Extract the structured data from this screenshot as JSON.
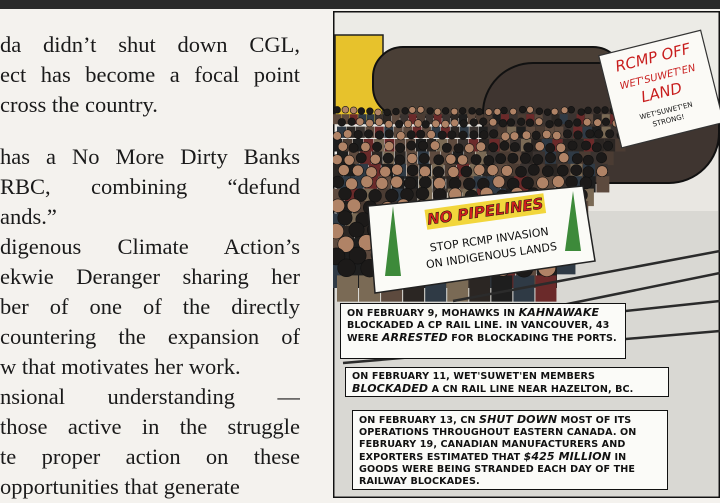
{
  "body": {
    "lines": [
      "da didn’t shut down CGL,",
      "ect has become a focal point",
      "cross the country.",
      "has a No More Dirty Banks",
      "RBC, combining “defund",
      "ands.”",
      "digenous Climate Action’s",
      "ekwie Deranger sharing her",
      "ber of one of the directly",
      "countering the expansion of",
      "w that motivates her work.",
      "nsional understanding —",
      "those active in the struggle",
      "te proper action on these",
      "opportunities that generate"
    ]
  },
  "comic": {
    "sign": [
      "RCMP OFF",
      "WET'SUWET'EN",
      "LAND",
      "WET'SUWET'EN",
      "STRONG!"
    ],
    "banner": {
      "title": "NO PIPELINES",
      "lines": [
        "STOP RCMP INVASION",
        "ON INDIGENOUS LANDS"
      ]
    },
    "captions": [
      {
        "parts": [
          {
            "text": "ON FEBRUARY 9, MOHAWKS IN ",
            "emphasis": false
          },
          {
            "text": "KAHNAWAKE",
            "emphasis": true
          },
          {
            "text": " BLOCKADED A CP RAIL LINE. IN VANCOUVER, 43 WERE ",
            "emphasis": false
          },
          {
            "text": "ARRESTED",
            "emphasis": true
          },
          {
            "text": " FOR BLOCKADING THE PORTS.",
            "emphasis": false
          }
        ]
      },
      {
        "parts": [
          {
            "text": "ON FEBRUARY 11, WET'SUWET'EN MEMBERS ",
            "emphasis": false
          },
          {
            "text": "BLOCKADED",
            "emphasis": true
          },
          {
            "text": " A CN RAIL LINE NEAR HAZELTON, BC.",
            "emphasis": false
          }
        ]
      },
      {
        "parts": [
          {
            "text": "ON FEBRUARY 13, CN ",
            "emphasis": false
          },
          {
            "text": "SHUT DOWN",
            "emphasis": true
          },
          {
            "text": " MOST OF ITS OPERATIONS THROUGHOUT EASTERN CANADA. ON FEBRUARY 19, CANADIAN MANUFACTURERS AND EXPORTERS ESTIMATED THAT ",
            "emphasis": false
          },
          {
            "text": "$425 MILLION",
            "emphasis": true
          },
          {
            "text": " IN GOODS WERE BEING STRANDED EACH DAY OF THE RAILWAY BLOCKADES.",
            "emphasis": false
          }
        ]
      }
    ]
  }
}
